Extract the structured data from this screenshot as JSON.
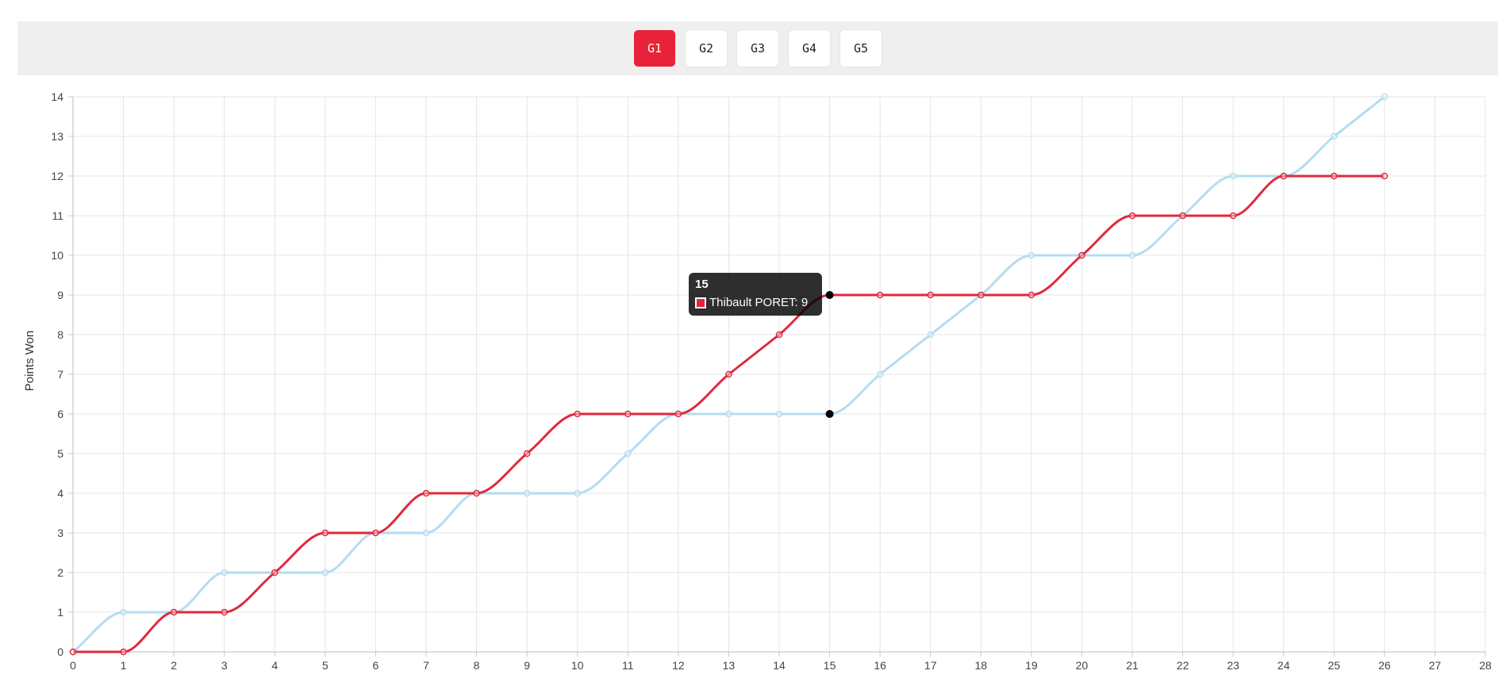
{
  "game_tabs": [
    {
      "label": "G1",
      "active": true
    },
    {
      "label": "G2",
      "active": false
    },
    {
      "label": "G3",
      "active": false
    },
    {
      "label": "G4",
      "active": false
    },
    {
      "label": "G5",
      "active": false
    }
  ],
  "tooltip": {
    "title": "15",
    "series_name": "Thibault PORET",
    "value_text": "9",
    "text": "Thibault PORET: 9"
  },
  "chart_data": {
    "type": "line",
    "title": "",
    "xlabel": "",
    "ylabel": "Points Won",
    "xlim": [
      0,
      28
    ],
    "ylim": [
      0,
      14
    ],
    "x_ticks": [
      0,
      1,
      2,
      3,
      4,
      5,
      6,
      7,
      8,
      9,
      10,
      11,
      12,
      13,
      14,
      15,
      16,
      17,
      18,
      19,
      20,
      21,
      22,
      23,
      24,
      25,
      26,
      27,
      28
    ],
    "y_ticks": [
      0,
      1,
      2,
      3,
      4,
      5,
      6,
      7,
      8,
      9,
      10,
      11,
      12,
      13,
      14
    ],
    "grid": true,
    "legend": "none",
    "highlight_x": 15,
    "series": [
      {
        "name": "Thibault PORET",
        "color": "#e0283f",
        "x": [
          0,
          1,
          2,
          3,
          4,
          5,
          6,
          7,
          8,
          9,
          10,
          11,
          12,
          13,
          14,
          15,
          16,
          17,
          18,
          19,
          20,
          21,
          22,
          23,
          24,
          25,
          26
        ],
        "values": [
          0,
          0,
          1,
          1,
          2,
          3,
          3,
          4,
          4,
          5,
          6,
          6,
          6,
          7,
          8,
          9,
          9,
          9,
          9,
          9,
          10,
          11,
          11,
          11,
          12,
          12,
          12
        ]
      },
      {
        "color": "#b3dcf0",
        "x": [
          0,
          1,
          2,
          3,
          4,
          5,
          6,
          7,
          8,
          9,
          10,
          11,
          12,
          13,
          14,
          15,
          16,
          17,
          18,
          19,
          20,
          21,
          22,
          23,
          24,
          25,
          26
        ],
        "values": [
          0,
          1,
          1,
          2,
          2,
          2,
          3,
          3,
          4,
          4,
          4,
          5,
          6,
          6,
          6,
          6,
          7,
          8,
          9,
          10,
          10,
          10,
          11,
          12,
          12,
          13,
          14
        ]
      }
    ]
  }
}
